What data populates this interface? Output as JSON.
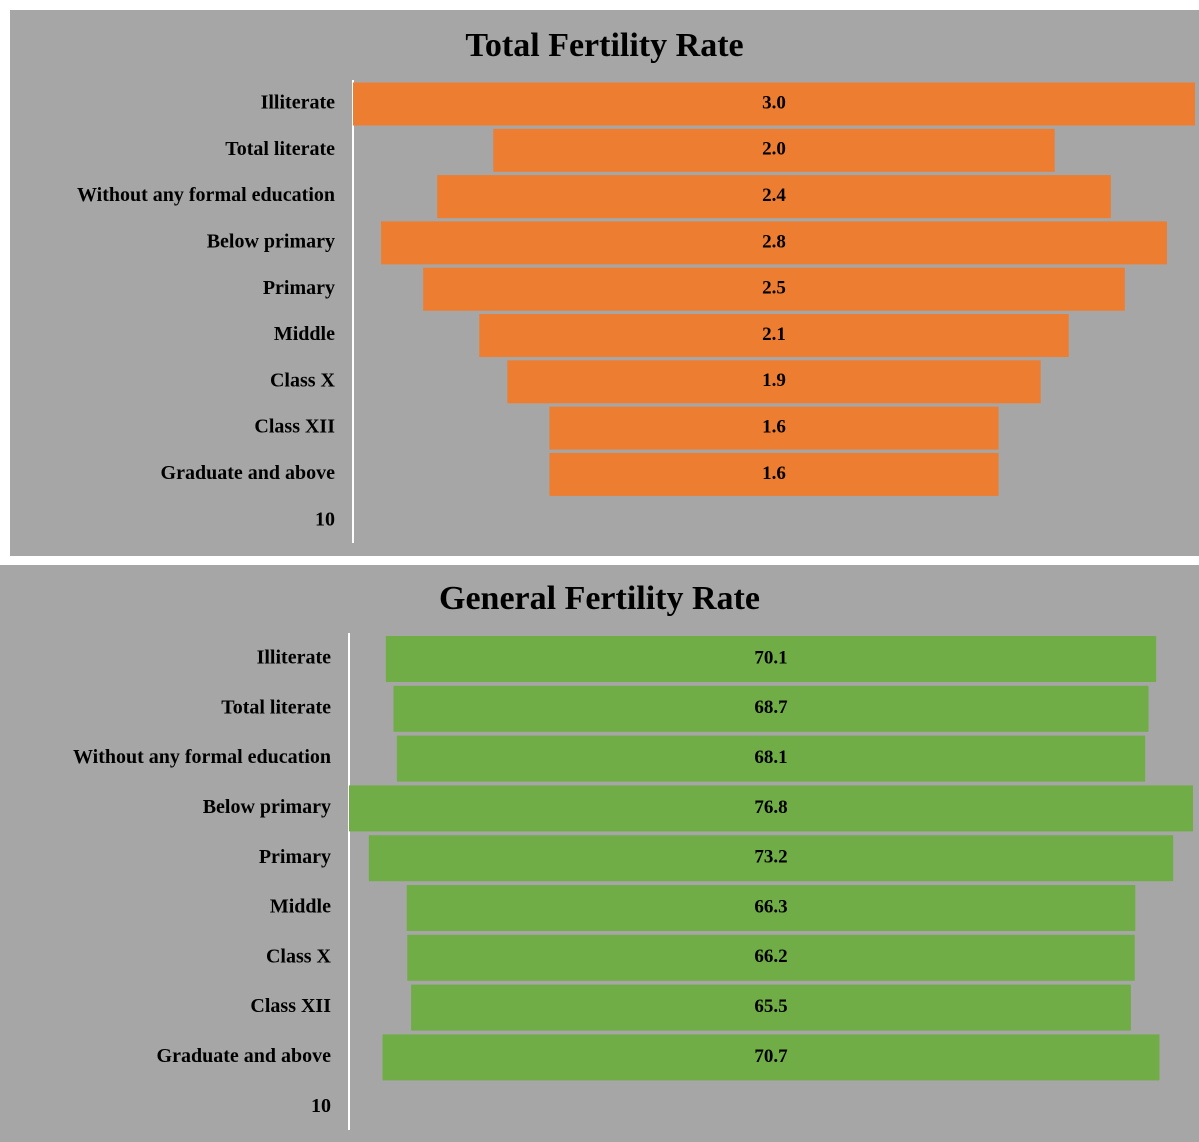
{
  "chart_data": [
    {
      "type": "funnel",
      "title": "Total Fertility Rate",
      "color": "#ed7d31",
      "categories": [
        "Illiterate",
        "Total literate",
        "Without any formal education",
        "Below primary",
        "Primary",
        "Middle",
        "Class X",
        "Class XII",
        "Graduate and above",
        "10"
      ],
      "values": [
        3,
        2,
        2.4,
        2.8,
        2.5,
        2.1,
        1.9,
        1.6,
        1.6,
        null
      ],
      "value_labels": [
        "3.0",
        "2.0",
        "2.4",
        "2.8",
        "2.5",
        "2.1",
        "1.9",
        "1.6",
        "1.6",
        null
      ]
    },
    {
      "type": "funnel",
      "title": "General Fertility Rate",
      "color": "#70ad47",
      "categories": [
        "Illiterate",
        "Total literate",
        "Without any formal education",
        "Below primary",
        "Primary",
        "Middle",
        "Class X",
        "Class XII",
        "Graduate and above",
        "10"
      ],
      "values": [
        70.1,
        68.7,
        68.1,
        76.8,
        73.2,
        66.3,
        66.2,
        65.5,
        70.7,
        null
      ]
    }
  ]
}
